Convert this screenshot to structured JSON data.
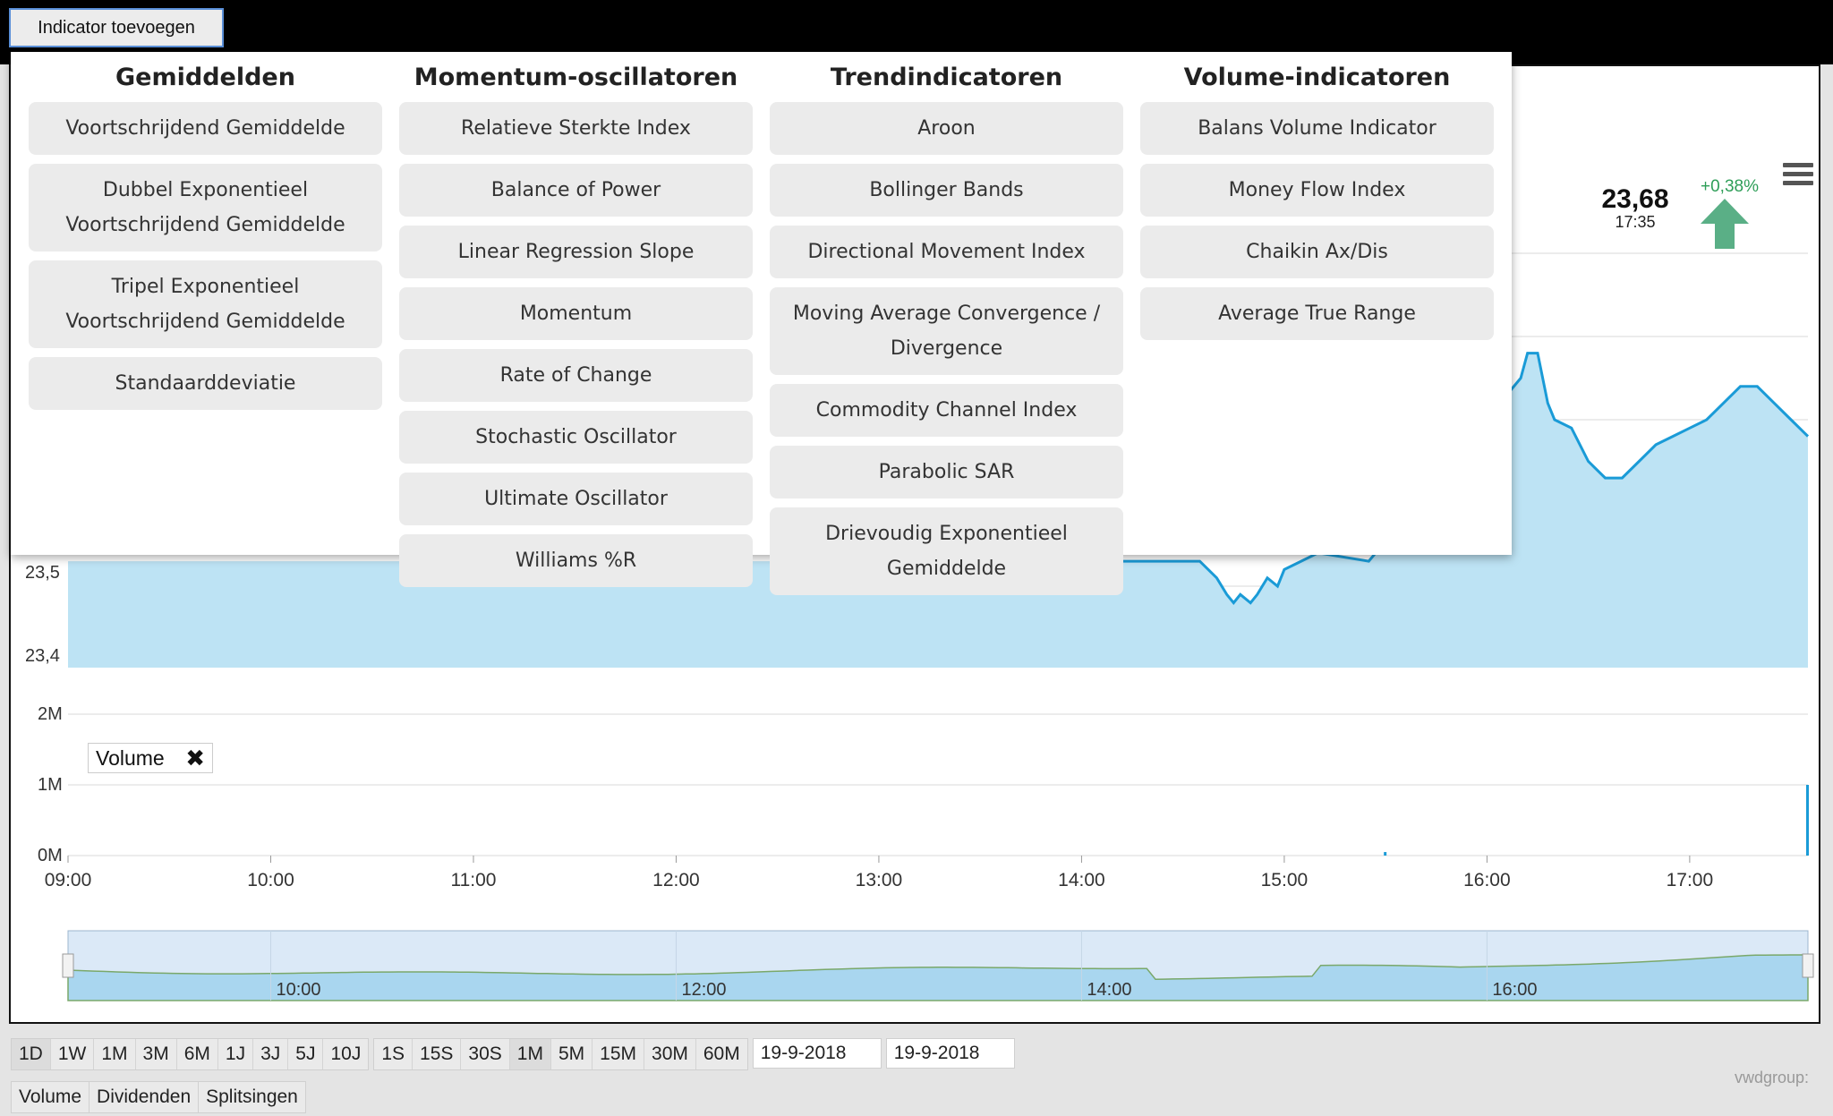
{
  "toolbar": {
    "add_indicator_label": "Indicator toevoegen"
  },
  "indicator_menu": {
    "columns": [
      {
        "title": "Gemiddelden",
        "items": [
          "Voortschrijdend Gemiddelde",
          "Dubbel Exponentieel Voortschrijdend Gemiddelde",
          "Tripel Exponentieel Voortschrijdend Gemiddelde",
          "Standaarddeviatie"
        ]
      },
      {
        "title": "Momentum-oscillatoren",
        "items": [
          "Relatieve Sterkte Index",
          "Balance of Power",
          "Linear Regression Slope",
          "Momentum",
          "Rate of Change",
          "Stochastic Oscillator",
          "Ultimate Oscillator",
          "Williams %R"
        ]
      },
      {
        "title": "Trendindicatoren",
        "items": [
          "Aroon",
          "Bollinger Bands",
          "Directional Movement Index",
          "Moving Average Convergence / Divergence",
          "Commodity Channel Index",
          "Parabolic SAR",
          "Drievoudig Exponentieel Gemiddelde"
        ]
      },
      {
        "title": "Volume-indicatoren",
        "items": [
          "Balans Volume Indicator",
          "Money Flow Index",
          "Chaikin Ax/Dis",
          "Average True Range"
        ]
      }
    ]
  },
  "quote": {
    "price": "23,68",
    "time": "17:35",
    "change": "+0,38%"
  },
  "colors": {
    "accent": "#1a9bd7",
    "area_fill": "#bde3f4",
    "up": "#2e9e58",
    "arrow": "#5aaf86"
  },
  "icons": {
    "menu": "hamburger-icon",
    "up": "arrow-up-icon",
    "close": "close-icon"
  },
  "chart_data": [
    {
      "type": "area",
      "title": "",
      "ylabel": "",
      "y_ticks": [
        "23,4",
        "23,5"
      ],
      "x": [
        "13:15",
        "13:16",
        "13:17",
        "13:18",
        "13:19",
        "14:35",
        "14:40",
        "14:43",
        "14:45",
        "14:47",
        "14:50",
        "14:52",
        "14:55",
        "14:58",
        "15:00",
        "15:05",
        "15:10",
        "15:25",
        "16:10",
        "16:12",
        "16:15",
        "16:18",
        "16:20",
        "16:25",
        "16:30",
        "16:35",
        "16:40",
        "16:45",
        "16:50",
        "16:55",
        "17:00",
        "17:05",
        "17:10",
        "17:15",
        "17:20",
        "17:25",
        "17:30",
        "17:35"
      ],
      "y": [
        23.53,
        23.51,
        23.5,
        23.52,
        23.53,
        23.53,
        23.51,
        23.49,
        23.48,
        23.49,
        23.48,
        23.49,
        23.51,
        23.5,
        23.52,
        23.53,
        23.54,
        23.53,
        23.75,
        23.78,
        23.78,
        23.72,
        23.7,
        23.69,
        23.65,
        23.63,
        23.63,
        23.65,
        23.67,
        23.68,
        23.69,
        23.7,
        23.72,
        23.74,
        23.74,
        23.72,
        23.7,
        23.68
      ],
      "grid": true
    },
    {
      "type": "bar",
      "title": "Volume",
      "y_ticks": [
        "0M",
        "1M",
        "2M"
      ],
      "ylim": [
        0,
        2
      ],
      "x_ticks": [
        "09:00",
        "10:00",
        "11:00",
        "12:00",
        "13:00",
        "14:00",
        "15:00",
        "16:00",
        "17:00"
      ],
      "x": [
        "15:30",
        "17:35"
      ],
      "values": [
        0.05,
        1.0
      ]
    },
    {
      "type": "area",
      "title": "navigator",
      "x_ticks": [
        "10:00",
        "12:00",
        "14:00",
        "16:00"
      ]
    }
  ],
  "watermark": "vwdgroup:",
  "range_buttons": [
    "1D",
    "1W",
    "1M",
    "3M",
    "6M",
    "1J",
    "3J",
    "5J",
    "10J"
  ],
  "interval_buttons": [
    "1S",
    "15S",
    "30S",
    "1M",
    "5M",
    "15M",
    "30M",
    "60M"
  ],
  "dates": {
    "from": "19-9-2018",
    "to": "19-9-2018"
  },
  "bottom_buttons": [
    "Volume",
    "Dividenden",
    "Splitsingen"
  ]
}
